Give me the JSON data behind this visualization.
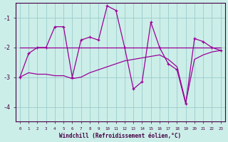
{
  "xlabel": "Windchill (Refroidissement éolien,°C)",
  "x": [
    0,
    1,
    2,
    3,
    4,
    5,
    6,
    7,
    8,
    9,
    10,
    11,
    12,
    13,
    14,
    15,
    16,
    17,
    18,
    19,
    20,
    21,
    22,
    23
  ],
  "y_jagged": [
    -3.0,
    -2.2,
    -2.0,
    -2.0,
    -1.3,
    -1.3,
    -3.0,
    -1.75,
    -1.65,
    -1.75,
    -0.6,
    -0.75,
    -2.0,
    -3.4,
    -3.15,
    -1.15,
    -2.0,
    -2.55,
    -2.75,
    -3.9,
    -1.7,
    -1.8,
    -2.0,
    -2.1
  ],
  "y_flat": [
    -2.0,
    -2.0,
    -2.0,
    -2.0,
    -2.0,
    -2.0,
    -2.0,
    -2.0,
    -2.0,
    -2.0,
    -2.0,
    -2.0,
    -2.0,
    -2.0,
    -2.0,
    -2.0,
    -2.0,
    -2.0,
    -2.0,
    -2.0,
    -2.0,
    -2.0,
    -2.0,
    -2.0
  ],
  "y_lower": [
    -3.0,
    -2.85,
    -2.9,
    -2.9,
    -2.95,
    -2.95,
    -3.05,
    -3.0,
    -2.85,
    -2.75,
    -2.65,
    -2.55,
    -2.45,
    -2.4,
    -2.35,
    -2.3,
    -2.25,
    -2.4,
    -2.65,
    -3.85,
    -2.4,
    -2.25,
    -2.15,
    -2.1
  ],
  "line_color": "#990099",
  "bg_color": "#cceee8",
  "grid_color": "#99cccc",
  "ylim": [
    -4.5,
    -0.5
  ],
  "yticks": [
    -4,
    -3,
    -2,
    -1
  ],
  "xlim": [
    -0.5,
    23.5
  ]
}
